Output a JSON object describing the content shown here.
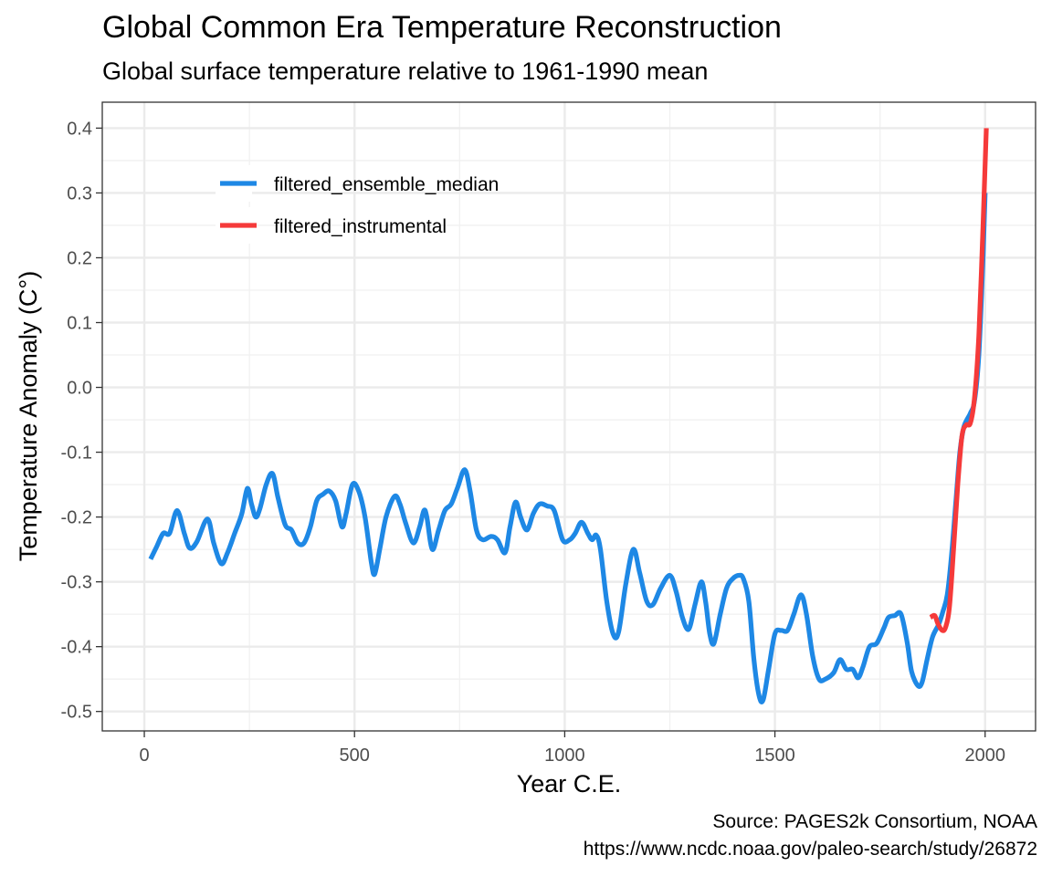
{
  "chart_data": {
    "type": "line",
    "title": "Global Common Era Temperature Reconstruction",
    "subtitle": "Global surface temperature relative to 1961-1990 mean",
    "xlabel": "Year C.E.",
    "ylabel": "Temperature Anomaly (C°)",
    "xlim": [
      -100,
      2120
    ],
    "ylim": [
      -0.53,
      0.44
    ],
    "x_ticks": [
      0,
      500,
      1000,
      1500,
      2000
    ],
    "x_tick_labels": [
      "0",
      "500",
      "1000",
      "1500",
      "2000"
    ],
    "y_ticks": [
      -0.5,
      -0.4,
      -0.3,
      -0.2,
      -0.1,
      0.0,
      0.1,
      0.2,
      0.3,
      0.4
    ],
    "y_tick_labels": [
      "-0.5",
      "-0.4",
      "-0.3",
      "-0.2",
      "-0.1",
      "0.0",
      "0.1",
      "0.2",
      "0.3",
      "0.4"
    ],
    "grid": true,
    "legend_position": "top-left inside",
    "series": [
      {
        "name": "filtered_ensemble_median",
        "color": "#1e88e5",
        "points": [
          [
            15,
            -0.265
          ],
          [
            30,
            -0.245
          ],
          [
            45,
            -0.225
          ],
          [
            60,
            -0.225
          ],
          [
            78,
            -0.19
          ],
          [
            95,
            -0.225
          ],
          [
            108,
            -0.248
          ],
          [
            125,
            -0.238
          ],
          [
            150,
            -0.203
          ],
          [
            165,
            -0.24
          ],
          [
            183,
            -0.272
          ],
          [
            198,
            -0.255
          ],
          [
            215,
            -0.225
          ],
          [
            232,
            -0.195
          ],
          [
            245,
            -0.156
          ],
          [
            255,
            -0.18
          ],
          [
            265,
            -0.2
          ],
          [
            275,
            -0.187
          ],
          [
            290,
            -0.15
          ],
          [
            305,
            -0.133
          ],
          [
            318,
            -0.17
          ],
          [
            335,
            -0.212
          ],
          [
            350,
            -0.22
          ],
          [
            365,
            -0.24
          ],
          [
            380,
            -0.24
          ],
          [
            395,
            -0.215
          ],
          [
            410,
            -0.175
          ],
          [
            425,
            -0.165
          ],
          [
            440,
            -0.16
          ],
          [
            455,
            -0.175
          ],
          [
            470,
            -0.215
          ],
          [
            480,
            -0.195
          ],
          [
            495,
            -0.15
          ],
          [
            510,
            -0.16
          ],
          [
            525,
            -0.2
          ],
          [
            540,
            -0.27
          ],
          [
            548,
            -0.288
          ],
          [
            560,
            -0.25
          ],
          [
            575,
            -0.2
          ],
          [
            595,
            -0.168
          ],
          [
            608,
            -0.18
          ],
          [
            622,
            -0.21
          ],
          [
            640,
            -0.24
          ],
          [
            655,
            -0.215
          ],
          [
            665,
            -0.19
          ],
          [
            672,
            -0.2
          ],
          [
            685,
            -0.25
          ],
          [
            700,
            -0.22
          ],
          [
            715,
            -0.19
          ],
          [
            730,
            -0.18
          ],
          [
            745,
            -0.155
          ],
          [
            762,
            -0.127
          ],
          [
            775,
            -0.16
          ],
          [
            790,
            -0.22
          ],
          [
            805,
            -0.235
          ],
          [
            825,
            -0.23
          ],
          [
            840,
            -0.235
          ],
          [
            858,
            -0.255
          ],
          [
            870,
            -0.215
          ],
          [
            883,
            -0.177
          ],
          [
            895,
            -0.2
          ],
          [
            910,
            -0.22
          ],
          [
            925,
            -0.195
          ],
          [
            940,
            -0.18
          ],
          [
            958,
            -0.183
          ],
          [
            975,
            -0.19
          ],
          [
            995,
            -0.235
          ],
          [
            1012,
            -0.235
          ],
          [
            1025,
            -0.225
          ],
          [
            1040,
            -0.208
          ],
          [
            1055,
            -0.225
          ],
          [
            1065,
            -0.235
          ],
          [
            1075,
            -0.228
          ],
          [
            1085,
            -0.25
          ],
          [
            1100,
            -0.33
          ],
          [
            1115,
            -0.38
          ],
          [
            1128,
            -0.378
          ],
          [
            1145,
            -0.305
          ],
          [
            1163,
            -0.25
          ],
          [
            1178,
            -0.285
          ],
          [
            1195,
            -0.33
          ],
          [
            1210,
            -0.335
          ],
          [
            1228,
            -0.31
          ],
          [
            1250,
            -0.29
          ],
          [
            1265,
            -0.315
          ],
          [
            1280,
            -0.355
          ],
          [
            1295,
            -0.373
          ],
          [
            1310,
            -0.335
          ],
          [
            1325,
            -0.3
          ],
          [
            1335,
            -0.33
          ],
          [
            1345,
            -0.38
          ],
          [
            1355,
            -0.395
          ],
          [
            1370,
            -0.35
          ],
          [
            1385,
            -0.31
          ],
          [
            1400,
            -0.295
          ],
          [
            1415,
            -0.29
          ],
          [
            1425,
            -0.295
          ],
          [
            1438,
            -0.33
          ],
          [
            1450,
            -0.42
          ],
          [
            1462,
            -0.475
          ],
          [
            1472,
            -0.482
          ],
          [
            1485,
            -0.435
          ],
          [
            1500,
            -0.38
          ],
          [
            1515,
            -0.375
          ],
          [
            1530,
            -0.375
          ],
          [
            1545,
            -0.35
          ],
          [
            1562,
            -0.32
          ],
          [
            1575,
            -0.35
          ],
          [
            1590,
            -0.415
          ],
          [
            1605,
            -0.45
          ],
          [
            1620,
            -0.45
          ],
          [
            1640,
            -0.44
          ],
          [
            1655,
            -0.42
          ],
          [
            1670,
            -0.435
          ],
          [
            1685,
            -0.435
          ],
          [
            1698,
            -0.448
          ],
          [
            1710,
            -0.43
          ],
          [
            1725,
            -0.4
          ],
          [
            1742,
            -0.395
          ],
          [
            1760,
            -0.37
          ],
          [
            1770,
            -0.355
          ],
          [
            1785,
            -0.352
          ],
          [
            1800,
            -0.35
          ],
          [
            1815,
            -0.395
          ],
          [
            1825,
            -0.438
          ],
          [
            1840,
            -0.46
          ],
          [
            1850,
            -0.455
          ],
          [
            1862,
            -0.42
          ],
          [
            1875,
            -0.385
          ],
          [
            1890,
            -0.365
          ],
          [
            1900,
            -0.345
          ],
          [
            1910,
            -0.32
          ],
          [
            1920,
            -0.26
          ],
          [
            1930,
            -0.18
          ],
          [
            1940,
            -0.1
          ],
          [
            1950,
            -0.06
          ],
          [
            1965,
            -0.04
          ],
          [
            1975,
            -0.02
          ],
          [
            1985,
            0.05
          ],
          [
            1995,
            0.2
          ],
          [
            2000,
            0.3
          ]
        ]
      },
      {
        "name": "filtered_instrumental",
        "color": "#f53a3a",
        "points": [
          [
            1870,
            -0.355
          ],
          [
            1880,
            -0.352
          ],
          [
            1888,
            -0.365
          ],
          [
            1898,
            -0.375
          ],
          [
            1906,
            -0.37
          ],
          [
            1915,
            -0.34
          ],
          [
            1925,
            -0.25
          ],
          [
            1935,
            -0.15
          ],
          [
            1945,
            -0.075
          ],
          [
            1955,
            -0.058
          ],
          [
            1965,
            -0.055
          ],
          [
            1975,
            -0.015
          ],
          [
            1985,
            0.08
          ],
          [
            1995,
            0.25
          ],
          [
            2003,
            0.4
          ]
        ]
      }
    ],
    "source": "Source: PAGES2k Consortium, NOAA",
    "url": "https://www.ncdc.noaa.gov/paleo-search/study/26872"
  }
}
